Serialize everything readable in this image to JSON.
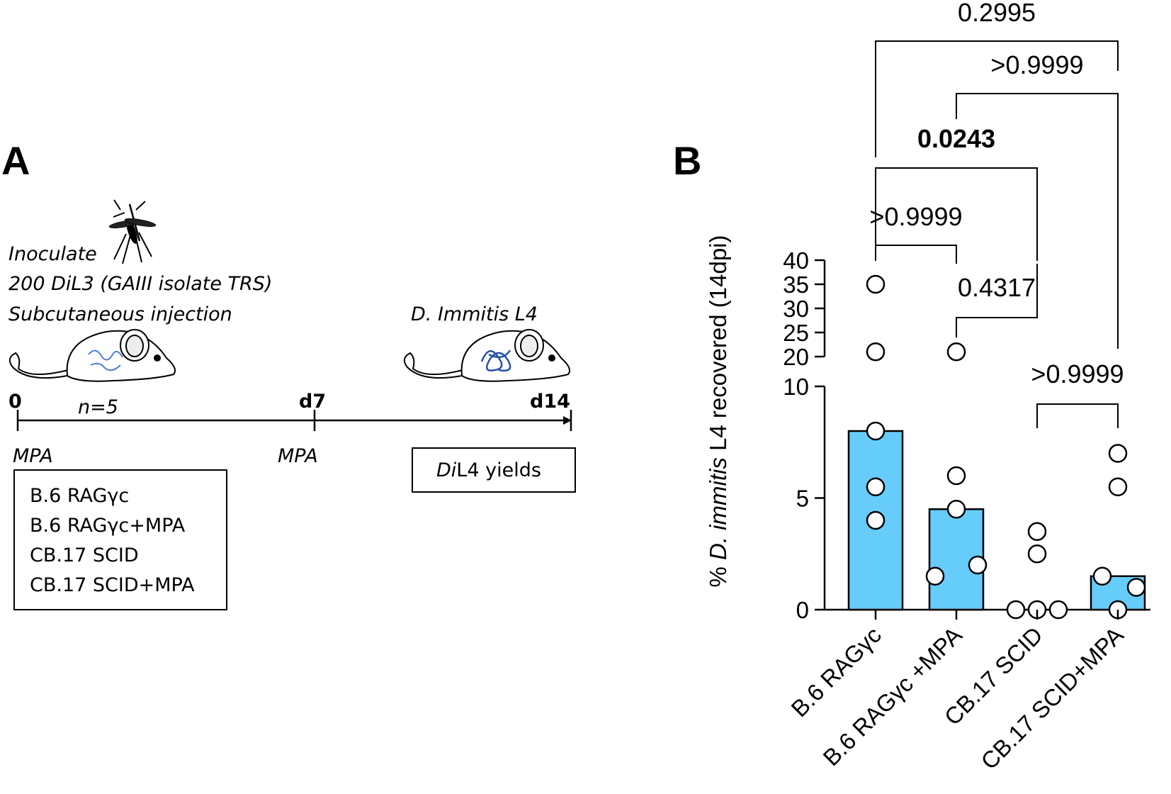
{
  "panel_a": {
    "letter": "A",
    "inoculate": "Inoculate",
    "dose": "200 DiL3 (GAIII isolate TRS)",
    "route": "Subcutaneous injection",
    "harvest_label": "D. Immitis L4",
    "n_label": "n=5",
    "timepoints": [
      "0",
      "d7",
      "d14"
    ],
    "mpa_label": "MPA",
    "yield_prefix": "Di",
    "yield_suffix": "L4 yields",
    "groups": [
      "B.6 RAGγc",
      "B.6 RAGγc+MPA",
      "CB.17 SCID",
      "CB.17 SCID+MPA"
    ],
    "icons": [
      "mosquito-icon",
      "mouse-icon"
    ]
  },
  "chart_data": {
    "type": "bar",
    "panel_letter": "B",
    "ylabel_prefix": "% ",
    "ylabel_italic": "D. immitis",
    "ylabel_suffix": " L4 recovered (14dpi)",
    "categories": [
      "B.6 RAGγc",
      "B.6 RAGγc +MPA",
      "CB.17 SCID",
      "CB.17 SCID+MPA"
    ],
    "values": [
      8,
      4.5,
      0,
      1.5
    ],
    "points": [
      [
        35,
        21,
        8,
        5.5,
        4
      ],
      [
        21,
        6,
        4.5,
        1.5,
        2
      ],
      [
        3.5,
        2.5,
        0,
        0,
        0
      ],
      [
        7,
        5.5,
        1.5,
        1,
        0
      ]
    ],
    "y_axis": {
      "broken": true,
      "lower_range": [
        0,
        10
      ],
      "lower_ticks": [
        "0",
        "5",
        "10"
      ],
      "upper_range": [
        20,
        40
      ],
      "upper_ticks": [
        "20",
        "25",
        "30",
        "35",
        "40"
      ]
    },
    "bar_color": "#66ccfa",
    "comparisons": [
      {
        "groups": [
          0,
          1
        ],
        "p": ">0.9999",
        "bold": false
      },
      {
        "groups": [
          1,
          2
        ],
        "p": "0.4317",
        "bold": false
      },
      {
        "groups": [
          2,
          3
        ],
        "p": ">0.9999",
        "bold": false
      },
      {
        "groups": [
          0,
          2
        ],
        "p": "0.0243",
        "bold": true
      },
      {
        "groups": [
          1,
          3
        ],
        "p": ">0.9999",
        "bold": false
      },
      {
        "groups": [
          0,
          3
        ],
        "p": "0.2995",
        "bold": false
      }
    ]
  }
}
